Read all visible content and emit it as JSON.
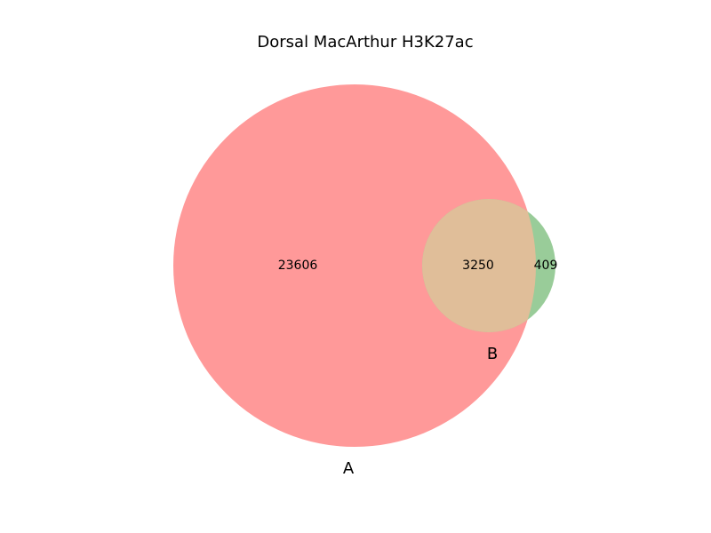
{
  "chart_data": {
    "type": "venn",
    "title": "Dorsal MacArthur H3K27ac",
    "sets": [
      {
        "label": "A",
        "size": 26856,
        "color": "#ff9999"
      },
      {
        "label": "B",
        "size": 3659,
        "color": "#99cc99"
      }
    ],
    "regions": [
      {
        "sets": [
          "A"
        ],
        "value": 23606
      },
      {
        "sets": [
          "A",
          "B"
        ],
        "value": 3250
      },
      {
        "sets": [
          "B"
        ],
        "value": 409
      }
    ],
    "intersection_color": "#e0be99"
  }
}
